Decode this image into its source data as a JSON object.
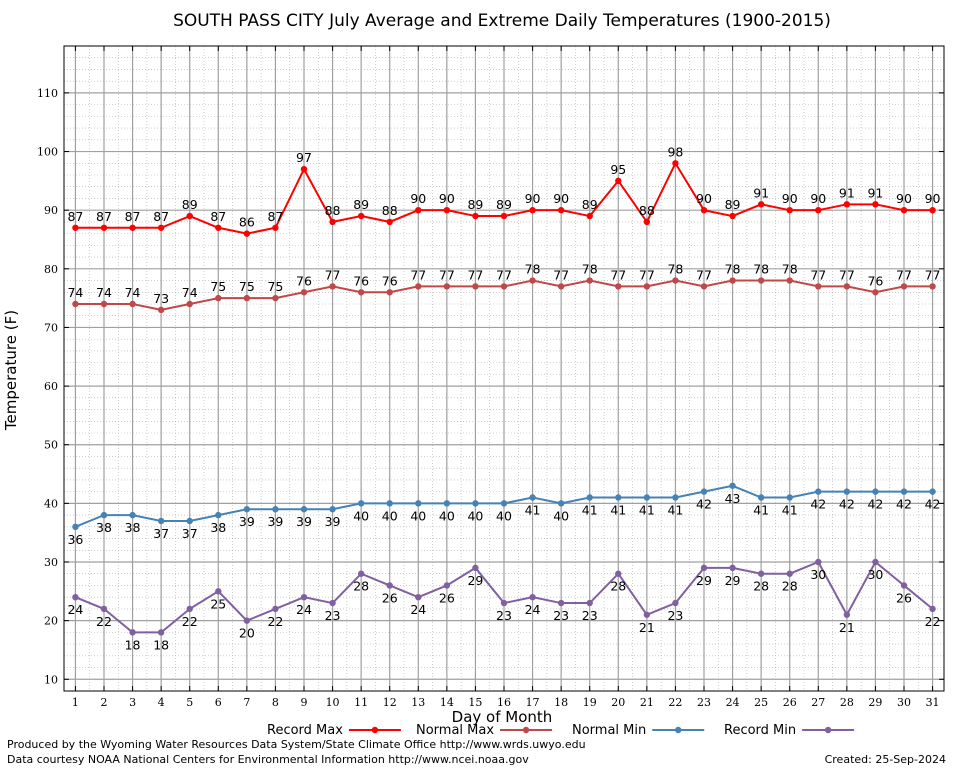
{
  "chart_data": {
    "type": "line",
    "title": "SOUTH PASS CITY July Average and Extreme Daily Temperatures (1900-2015)",
    "xlabel": "Day of Month",
    "ylabel": "Temperature (F)",
    "x": [
      1,
      2,
      3,
      4,
      5,
      6,
      7,
      8,
      9,
      10,
      11,
      12,
      13,
      14,
      15,
      16,
      17,
      18,
      19,
      20,
      21,
      22,
      23,
      24,
      25,
      26,
      27,
      28,
      29,
      30,
      31
    ],
    "xlim": [
      0.6,
      31.4
    ],
    "ylim": [
      8,
      118
    ],
    "yticks": [
      10,
      20,
      30,
      40,
      50,
      60,
      70,
      80,
      90,
      100,
      110
    ],
    "grid": true,
    "legend_position": "bottom",
    "series": [
      {
        "name": "Record Max",
        "color": "#ff0000",
        "values": [
          87,
          87,
          87,
          87,
          89,
          87,
          86,
          87,
          97,
          88,
          89,
          88,
          90,
          90,
          89,
          89,
          90,
          90,
          89,
          95,
          88,
          98,
          90,
          89,
          91,
          90,
          90,
          91,
          91,
          90,
          90
        ]
      },
      {
        "name": "Normal Max",
        "color": "#c04848",
        "values": [
          74,
          74,
          74,
          73,
          74,
          75,
          75,
          75,
          76,
          77,
          76,
          76,
          77,
          77,
          77,
          77,
          78,
          77,
          78,
          77,
          77,
          78,
          77,
          78,
          78,
          78,
          77,
          77,
          76,
          77,
          77
        ]
      },
      {
        "name": "Normal Min",
        "color": "#4682b4",
        "values": [
          36,
          38,
          38,
          37,
          37,
          38,
          39,
          39,
          39,
          39,
          40,
          40,
          40,
          40,
          40,
          40,
          41,
          40,
          41,
          41,
          41,
          41,
          42,
          43,
          41,
          41,
          42,
          42,
          42,
          42,
          42
        ]
      },
      {
        "name": "Record Min",
        "color": "#8060a0",
        "values": [
          24,
          22,
          18,
          18,
          22,
          25,
          20,
          22,
          24,
          23,
          28,
          26,
          24,
          26,
          29,
          23,
          24,
          23,
          23,
          28,
          21,
          23,
          29,
          29,
          28,
          28,
          30,
          21,
          30,
          26,
          22
        ]
      }
    ]
  },
  "footer": {
    "produced_by": "Produced by the Wyoming Water Resources Data System/State Climate Office http://www.wrds.uwyo.edu",
    "data_courtesy": "Data courtesy NOAA National Centers for Environmental Information http://www.ncei.noaa.gov",
    "created": "Created: 25-Sep-2024"
  }
}
